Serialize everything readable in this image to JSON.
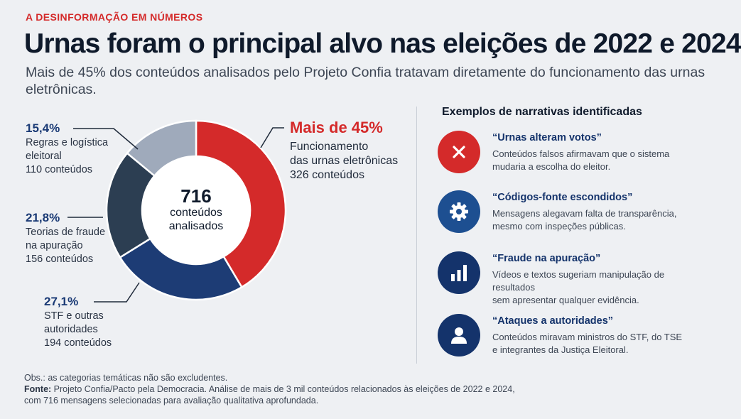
{
  "kicker": "A DESINFORMAÇÃO EM NÚMEROS",
  "title": "Urnas foram o principal alvo nas eleições de 2022 e 2024",
  "subtitle": "Mais de 45% dos conteúdos analisados pelo Projeto Confia tratavam diretamente do funcionamento das urnas eletrônicas.",
  "chart_data": {
    "type": "pie",
    "variant": "donut",
    "total": 716,
    "center_label": {
      "number": "716",
      "line1": "conteúdos",
      "line2": "analisados"
    },
    "slices": [
      {
        "pct_label": "Mais de 45%",
        "value": 326,
        "percent": 45.5,
        "lines": [
          "Funcionamento",
          "das urnas eletrônicas",
          "326 conteúdos"
        ],
        "color": "#d42a2a"
      },
      {
        "pct_label": "27,1%",
        "value": 194,
        "percent": 27.1,
        "lines": [
          "STF e outras",
          "autoridades",
          "194 conteúdos"
        ],
        "color": "#1d3c75"
      },
      {
        "pct_label": "21,8%",
        "value": 156,
        "percent": 21.8,
        "lines": [
          "Teorias de fraude",
          "na apuração",
          "156 conteúdos"
        ],
        "color": "#2c3e52"
      },
      {
        "pct_label": "15,4%",
        "value": 110,
        "percent": 15.4,
        "lines": [
          "Regras e logística",
          "eleitoral",
          "110 conteúdos"
        ],
        "color": "#9faabb"
      }
    ]
  },
  "examples": {
    "heading": "Exemplos de narrativas identificadas",
    "items": [
      {
        "title": "“Urnas alteram votos”",
        "desc1": "Conteúdos falsos afirmavam que o sistema",
        "desc2": "mudaria a escolha do eleitor.",
        "icon": "x-icon",
        "color": "#d42a2a"
      },
      {
        "title": "“Códigos-fonte escondidos”",
        "desc1": "Mensagens alegavam falta de transparência,",
        "desc2": "mesmo com inspeções públicas.",
        "icon": "gear-icon",
        "color": "#1d4f91"
      },
      {
        "title": "“Fraude na apuração”",
        "desc1": "Vídeos e textos sugeriam manipulação de resultados",
        "desc2": "sem apresentar qualquer evidência.",
        "icon": "bar-chart-icon",
        "color": "#14336b"
      },
      {
        "title": "“Ataques a autoridades”",
        "desc1": "Conteúdos miravam ministros do STF, do TSE",
        "desc2": "e integrantes da Justiça Eleitoral.",
        "icon": "person-icon",
        "color": "#14336b"
      }
    ]
  },
  "notes": {
    "obs": "Obs.: as categorias temáticas não são excludentes.",
    "source_label": "Fonte:",
    "source_text": " Projeto Confia/Pacto pela Democracia. Análise de mais de 3 mil conteúdos relacionados às eleições de 2022 e 2024,",
    "source_text2": "com 716 mensagens selecionadas para avaliação qualitativa aprofundada."
  }
}
